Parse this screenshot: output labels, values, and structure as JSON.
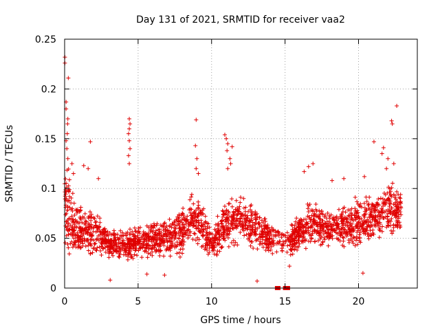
{
  "chart_data": {
    "type": "scatter",
    "title": "Day 131 of 2021, SRMTID for receiver vaa2",
    "xlabel": "GPS time / hours",
    "ylabel": "SRMTID / TECUs",
    "xlim": [
      0,
      24
    ],
    "ylim": [
      0,
      0.25
    ],
    "xticks": [
      0,
      5,
      10,
      15,
      20
    ],
    "xtick_labels": [
      "0",
      "5",
      "10",
      "15",
      "20"
    ],
    "yticks": [
      0,
      0.05,
      0.1,
      0.15,
      0.2,
      0.25
    ],
    "ytick_labels": [
      "0",
      "0.05",
      "0.1",
      "0.15",
      "0.2",
      "0.25"
    ],
    "grid": true,
    "marker": "plus",
    "color": "#e00000",
    "zero_points_x": [
      14.45,
      14.55,
      15.0,
      15.2
    ],
    "envelope": [
      {
        "x": 0.0,
        "mean": 0.09,
        "spread": 0.06
      },
      {
        "x": 0.5,
        "mean": 0.065,
        "spread": 0.04
      },
      {
        "x": 1.0,
        "mean": 0.055,
        "spread": 0.03
      },
      {
        "x": 2.0,
        "mean": 0.058,
        "spread": 0.03
      },
      {
        "x": 3.0,
        "mean": 0.045,
        "spread": 0.02
      },
      {
        "x": 4.0,
        "mean": 0.042,
        "spread": 0.02
      },
      {
        "x": 5.0,
        "mean": 0.045,
        "spread": 0.022
      },
      {
        "x": 6.0,
        "mean": 0.048,
        "spread": 0.022
      },
      {
        "x": 7.0,
        "mean": 0.05,
        "spread": 0.025
      },
      {
        "x": 8.0,
        "mean": 0.058,
        "spread": 0.028
      },
      {
        "x": 9.0,
        "mean": 0.072,
        "spread": 0.035
      },
      {
        "x": 10.0,
        "mean": 0.045,
        "spread": 0.02
      },
      {
        "x": 11.0,
        "mean": 0.065,
        "spread": 0.03
      },
      {
        "x": 12.0,
        "mean": 0.07,
        "spread": 0.03
      },
      {
        "x": 13.0,
        "mean": 0.06,
        "spread": 0.028
      },
      {
        "x": 14.0,
        "mean": 0.05,
        "spread": 0.025
      },
      {
        "x": 15.0,
        "mean": 0.048,
        "spread": 0.022
      },
      {
        "x": 16.0,
        "mean": 0.055,
        "spread": 0.025
      },
      {
        "x": 17.0,
        "mean": 0.065,
        "spread": 0.03
      },
      {
        "x": 18.0,
        "mean": 0.06,
        "spread": 0.025
      },
      {
        "x": 19.0,
        "mean": 0.062,
        "spread": 0.028
      },
      {
        "x": 20.0,
        "mean": 0.065,
        "spread": 0.03
      },
      {
        "x": 21.0,
        "mean": 0.07,
        "spread": 0.03
      },
      {
        "x": 22.0,
        "mean": 0.08,
        "spread": 0.035
      },
      {
        "x": 22.9,
        "mean": 0.075,
        "spread": 0.03
      }
    ],
    "spikes": [
      {
        "x": 0.02,
        "y": 0.232
      },
      {
        "x": 0.02,
        "y": 0.226
      },
      {
        "x": 0.25,
        "y": 0.211
      },
      {
        "x": 0.1,
        "y": 0.187
      },
      {
        "x": 0.1,
        "y": 0.18
      },
      {
        "x": 0.22,
        "y": 0.17
      },
      {
        "x": 0.2,
        "y": 0.165
      },
      {
        "x": 0.18,
        "y": 0.155
      },
      {
        "x": 0.1,
        "y": 0.148
      },
      {
        "x": 0.15,
        "y": 0.14
      },
      {
        "x": 0.22,
        "y": 0.13
      },
      {
        "x": 1.75,
        "y": 0.147
      },
      {
        "x": 1.6,
        "y": 0.12
      },
      {
        "x": 1.3,
        "y": 0.123
      },
      {
        "x": 4.4,
        "y": 0.17
      },
      {
        "x": 4.45,
        "y": 0.165
      },
      {
        "x": 4.4,
        "y": 0.16
      },
      {
        "x": 4.35,
        "y": 0.155
      },
      {
        "x": 4.4,
        "y": 0.148
      },
      {
        "x": 4.45,
        "y": 0.14
      },
      {
        "x": 4.35,
        "y": 0.133
      },
      {
        "x": 4.4,
        "y": 0.125
      },
      {
        "x": 8.95,
        "y": 0.169
      },
      {
        "x": 8.9,
        "y": 0.143
      },
      {
        "x": 9.0,
        "y": 0.13
      },
      {
        "x": 8.95,
        "y": 0.12
      },
      {
        "x": 9.1,
        "y": 0.115
      },
      {
        "x": 10.9,
        "y": 0.154
      },
      {
        "x": 11.0,
        "y": 0.15
      },
      {
        "x": 11.1,
        "y": 0.145
      },
      {
        "x": 11.05,
        "y": 0.138
      },
      {
        "x": 11.4,
        "y": 0.142
      },
      {
        "x": 11.25,
        "y": 0.13
      },
      {
        "x": 11.1,
        "y": 0.12
      },
      {
        "x": 11.3,
        "y": 0.125
      },
      {
        "x": 16.6,
        "y": 0.122
      },
      {
        "x": 16.9,
        "y": 0.125
      },
      {
        "x": 16.3,
        "y": 0.117
      },
      {
        "x": 21.05,
        "y": 0.147
      },
      {
        "x": 21.6,
        "y": 0.135
      },
      {
        "x": 21.7,
        "y": 0.141
      },
      {
        "x": 22.25,
        "y": 0.168
      },
      {
        "x": 22.3,
        "y": 0.165
      },
      {
        "x": 22.6,
        "y": 0.183
      },
      {
        "x": 22.0,
        "y": 0.13
      },
      {
        "x": 22.4,
        "y": 0.125
      },
      {
        "x": 21.9,
        "y": 0.12
      },
      {
        "x": 0.5,
        "y": 0.125
      },
      {
        "x": 0.6,
        "y": 0.115
      },
      {
        "x": 2.3,
        "y": 0.11
      },
      {
        "x": 3.1,
        "y": 0.008
      },
      {
        "x": 5.6,
        "y": 0.014
      },
      {
        "x": 6.8,
        "y": 0.013
      },
      {
        "x": 13.1,
        "y": 0.007
      },
      {
        "x": 15.3,
        "y": 0.022
      },
      {
        "x": 20.3,
        "y": 0.015
      },
      {
        "x": 18.2,
        "y": 0.108
      },
      {
        "x": 19.0,
        "y": 0.11
      },
      {
        "x": 20.4,
        "y": 0.112
      }
    ]
  }
}
